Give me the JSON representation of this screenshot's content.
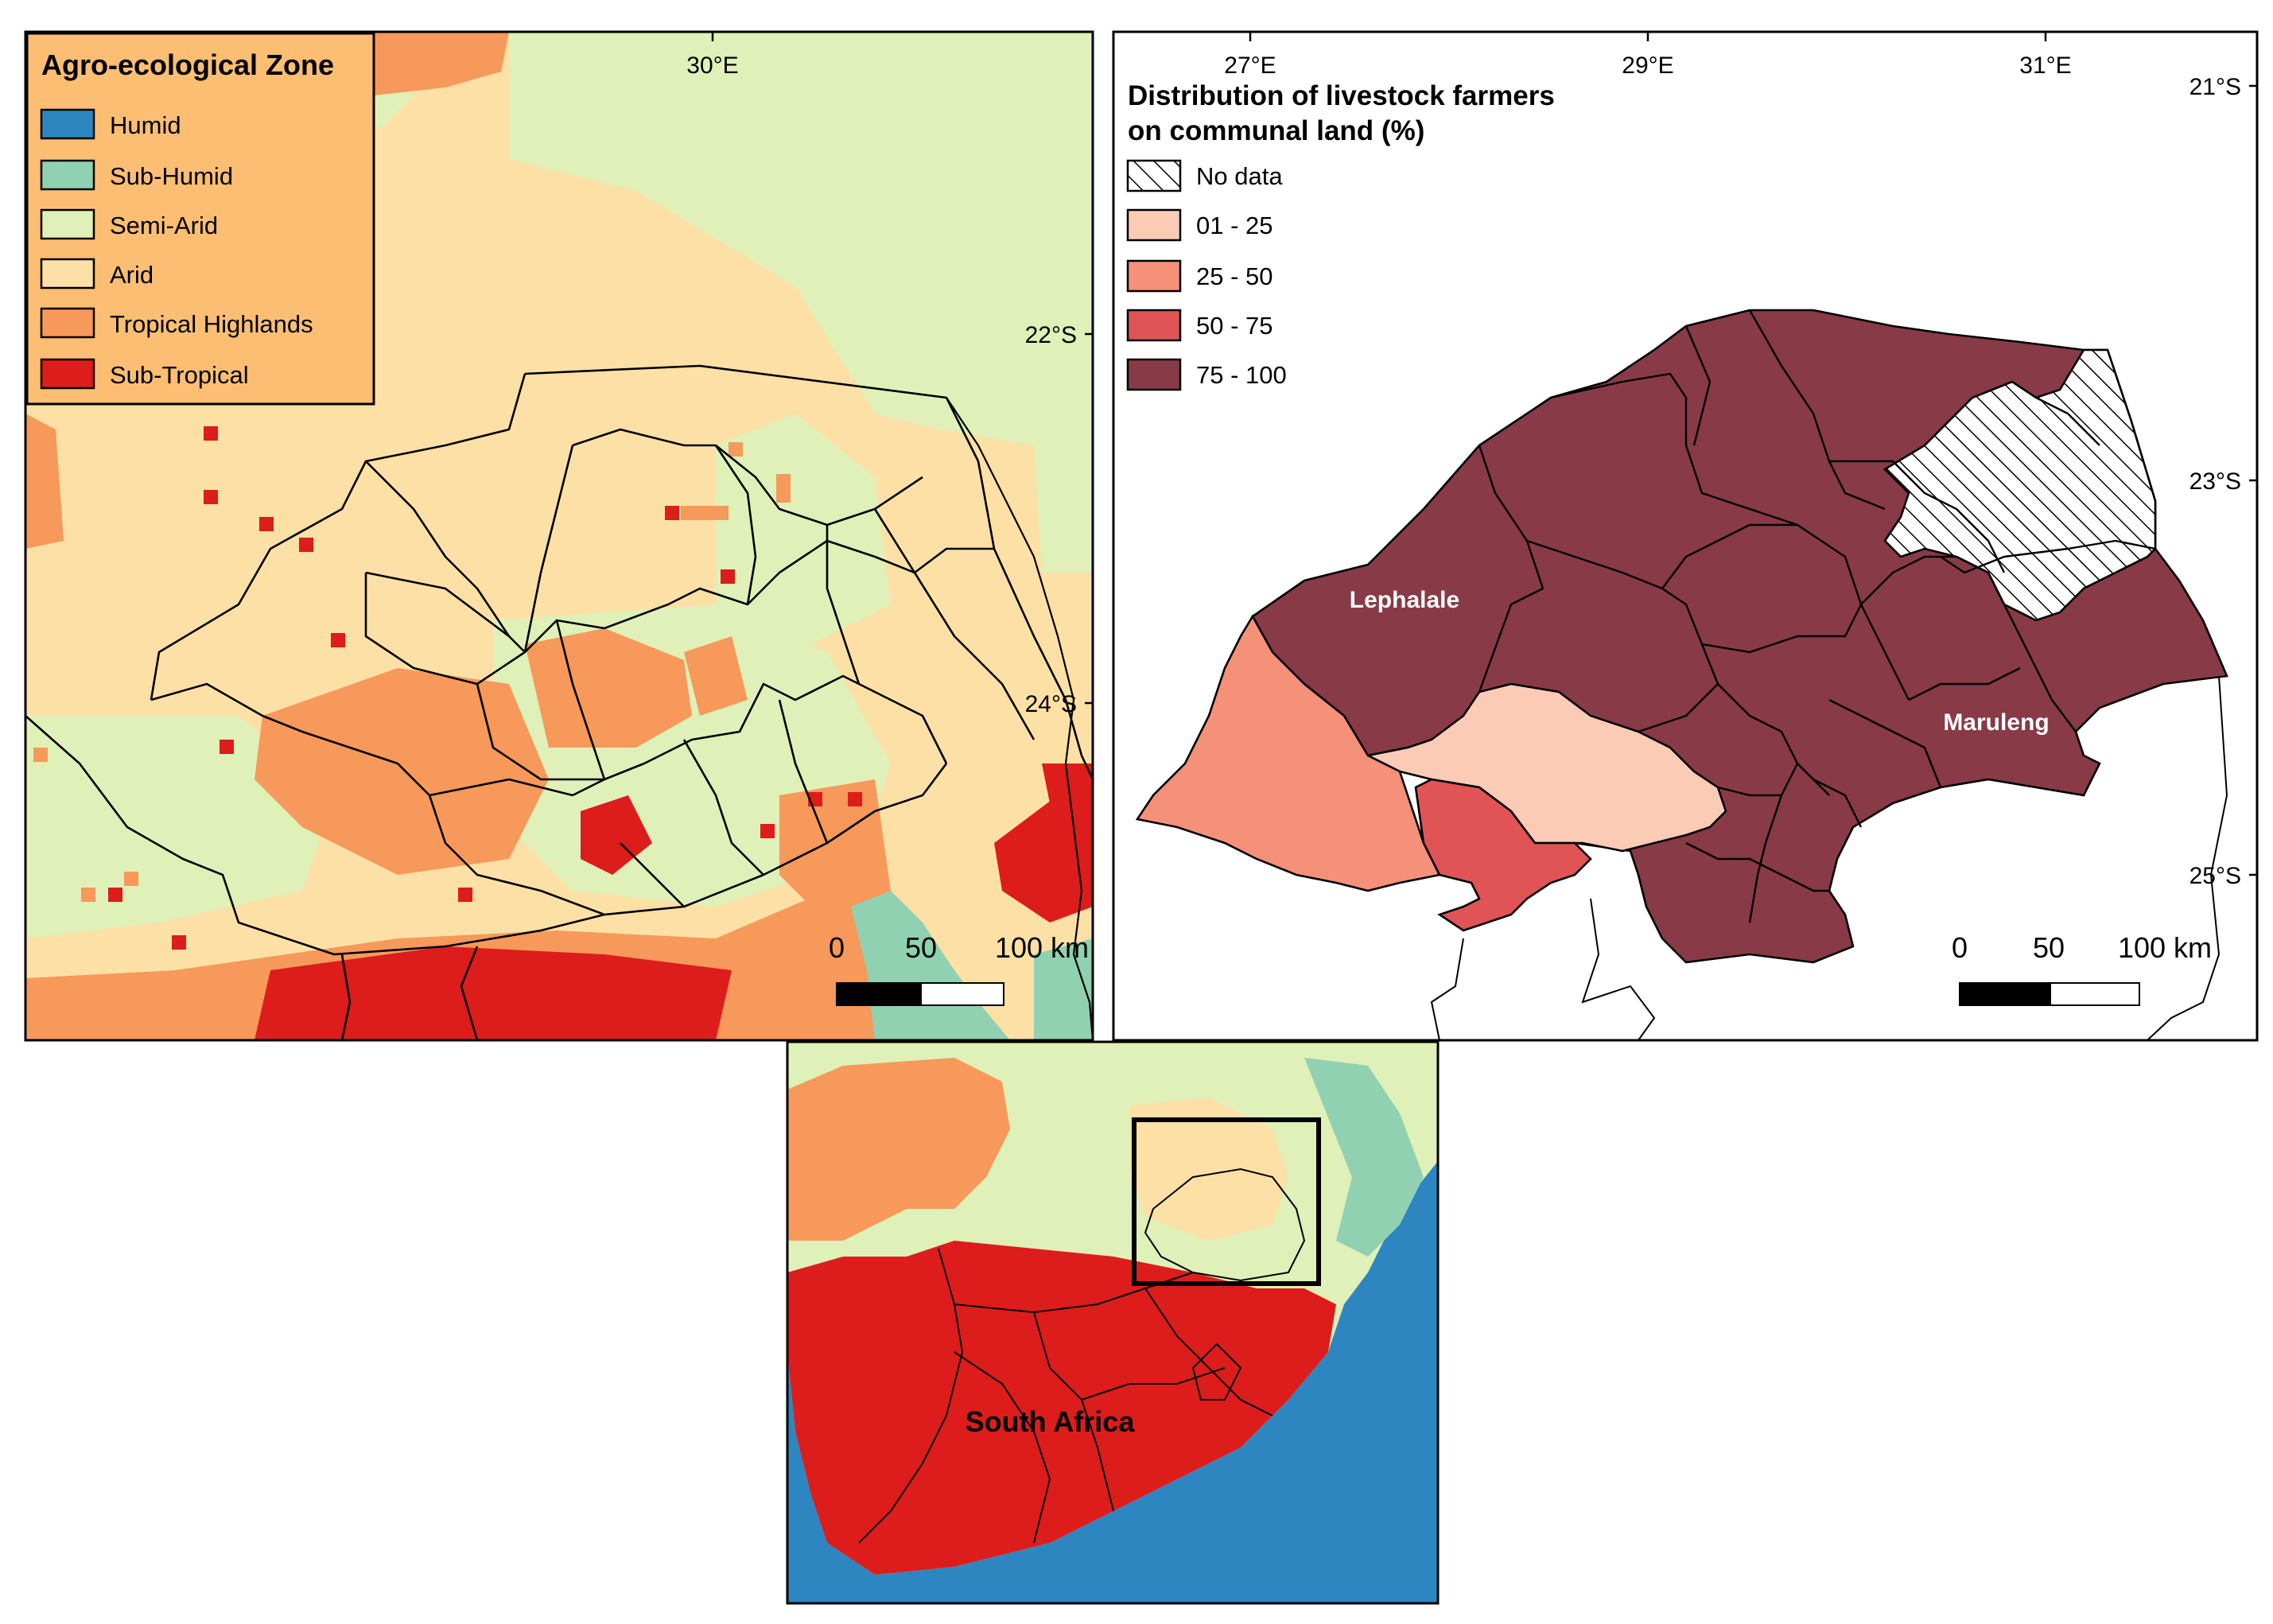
{
  "left_map": {
    "legend": {
      "title": "Agro-ecological Zone",
      "items": [
        {
          "label": "Humid",
          "color": "#2e86c1"
        },
        {
          "label": "Sub-Humid",
          "color": "#8fd1b0"
        },
        {
          "label": "Semi-Arid",
          "color": "#dff0b8"
        },
        {
          "label": "Arid",
          "color": "#fde0a6"
        },
        {
          "label": "Tropical Highlands",
          "color": "#f6995a"
        },
        {
          "label": "Sub-Tropical",
          "color": "#dd1c1c"
        }
      ]
    },
    "lon_labels": [
      "30°E"
    ],
    "lat_labels": [
      "22°S",
      "24°S"
    ],
    "scalebar": {
      "labels": [
        "0",
        "50",
        "100 km"
      ]
    }
  },
  "right_map": {
    "legend": {
      "title_line1": "Distribution of livestock farmers",
      "title_line2": "on communal land (%)",
      "items": [
        {
          "label": "No data",
          "color": "hatch"
        },
        {
          "label": "01 - 25",
          "color": "#fbcbb6"
        },
        {
          "label": "25 - 50",
          "color": "#f59079"
        },
        {
          "label": "50 - 75",
          "color": "#e05456"
        },
        {
          "label": "75 - 100",
          "color": "#883a47"
        }
      ]
    },
    "lon_labels": [
      "27°E",
      "29°E",
      "31°E"
    ],
    "lat_labels": [
      "21°S",
      "23°S",
      "25°S"
    ],
    "place_labels": [
      "Lephalale",
      "Maruleng"
    ],
    "scalebar": {
      "labels": [
        "0",
        "50",
        "100 km"
      ]
    }
  },
  "inset_map": {
    "country_label": "South Africa"
  }
}
